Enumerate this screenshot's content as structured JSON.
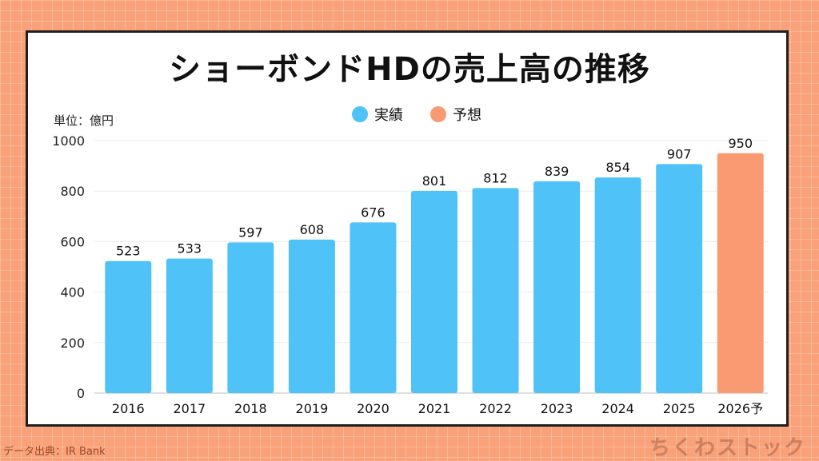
{
  "title": "ショーボンドHDの売上高の推移",
  "unit_label": "単位：億円",
  "legend": [
    {
      "label": "実績",
      "color": "#4fc3f7"
    },
    {
      "label": "予想",
      "color": "#f99a72"
    }
  ],
  "source": "データ出典：IR Bank",
  "logo_text": "ちくわストック",
  "chart_data": {
    "type": "bar",
    "title": "ショーボンドHDの売上高の推移",
    "xlabel": "",
    "ylabel": "",
    "ylim": [
      0,
      1000
    ],
    "yticks": [
      0,
      200,
      400,
      600,
      800,
      1000
    ],
    "grid": true,
    "legend_position": "top-center",
    "categories": [
      "2016",
      "2017",
      "2018",
      "2019",
      "2020",
      "2021",
      "2022",
      "2023",
      "2024",
      "2025",
      "2026予"
    ],
    "values": [
      523,
      533,
      597,
      608,
      676,
      801,
      812,
      839,
      854,
      907,
      950
    ],
    "series_per_bar": [
      "実績",
      "実績",
      "実績",
      "実績",
      "実績",
      "実績",
      "実績",
      "実績",
      "実績",
      "実績",
      "予想"
    ],
    "colors": {
      "実績": "#4fc3f7",
      "予想": "#f99a72"
    }
  }
}
